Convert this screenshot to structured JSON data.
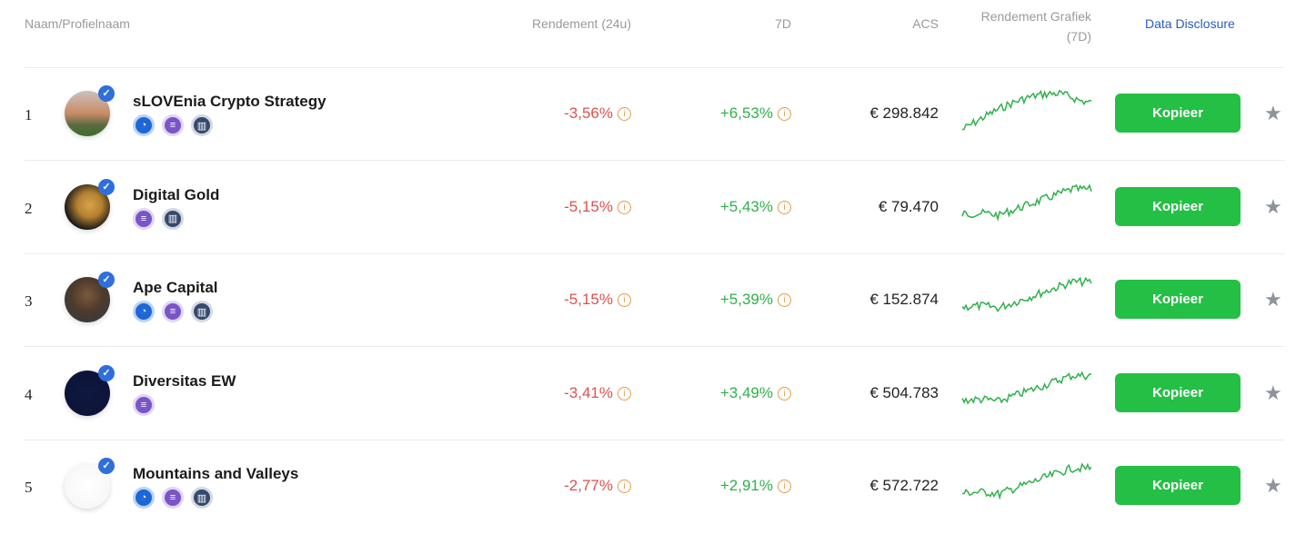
{
  "header": {
    "name": "Naam/Profielnaam",
    "return_24h": "Rendement (24u)",
    "return_7d": "7D",
    "acs": "ACS",
    "chart_line1": "Rendement Grafiek",
    "chart_line2": "(7D)",
    "disclosure": "Data Disclosure"
  },
  "colors": {
    "negative": "#e0504f",
    "positive": "#2fb14c",
    "button": "#24bf45",
    "link": "#2a5bb8"
  },
  "rows": [
    {
      "rank": "1",
      "name": "sLOVEnia Crypto Strategy",
      "r24": "-3,56%",
      "r7": "+6,53%",
      "acs": "€ 298.842",
      "button": "Kopieer",
      "badges": [
        "blue",
        "purple",
        "dark"
      ]
    },
    {
      "rank": "2",
      "name": "Digital Gold",
      "r24": "-5,15%",
      "r7": "+5,43%",
      "acs": "€ 79.470",
      "button": "Kopieer",
      "badges": [
        "purple",
        "dark"
      ]
    },
    {
      "rank": "3",
      "name": "Ape Capital",
      "r24": "-5,15%",
      "r7": "+5,39%",
      "acs": "€ 152.874",
      "button": "Kopieer",
      "badges": [
        "blue",
        "purple",
        "dark"
      ]
    },
    {
      "rank": "4",
      "name": "Diversitas EW",
      "r24": "-3,41%",
      "r7": "+3,49%",
      "acs": "€ 504.783",
      "button": "Kopieer",
      "badges": [
        "purple"
      ]
    },
    {
      "rank": "5",
      "name": "Mountains and Valleys",
      "r24": "-2,77%",
      "r7": "+2,91%",
      "acs": "€ 572.722",
      "button": "Kopieer",
      "badges": [
        "blue",
        "purple",
        "dark"
      ]
    }
  ]
}
